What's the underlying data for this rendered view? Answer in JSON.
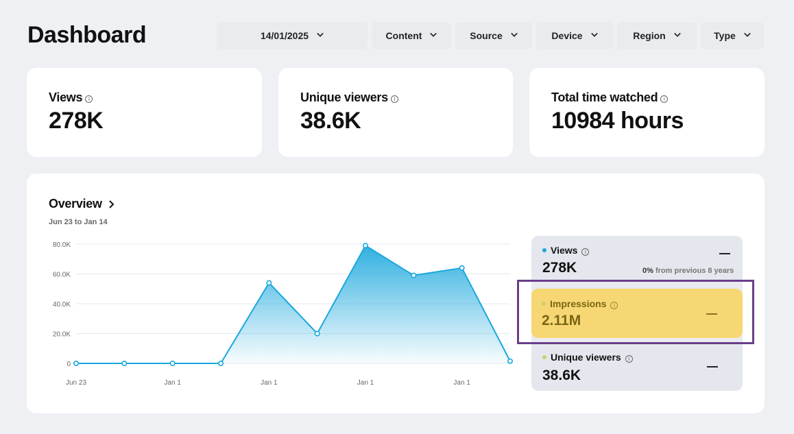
{
  "header": {
    "title": "Dashboard",
    "filters": [
      "14/01/2025",
      "Content",
      "Source",
      "Device",
      "Region",
      "Type"
    ]
  },
  "stats": [
    {
      "label": "Views",
      "value": "278K"
    },
    {
      "label": "Unique viewers",
      "value": "38.6K"
    },
    {
      "label": "Total time watched",
      "value": "10984 hours"
    }
  ],
  "overview": {
    "title": "Overview",
    "range": "Jun 23 to Jan 14"
  },
  "metrics": {
    "views": {
      "label": "Views",
      "value": "278K",
      "change_pct": "0%",
      "change_text": "from previous 8 years",
      "dot_color": "#1aa6e0"
    },
    "impressions": {
      "label": "Impressions",
      "value": "2.11M",
      "dot_color": "#c9d06a"
    },
    "unique_viewers": {
      "label": "Unique viewers",
      "value": "38.6K",
      "dot_color": "#c9d06a"
    }
  },
  "colors": {
    "line": "#19a7dd",
    "highlight_border": "#6b3d8a",
    "highlight_fill": "#f7d774"
  },
  "chart_data": {
    "type": "area",
    "x": [
      "Jun 23",
      "",
      "Jan 1",
      "",
      "Jan 1",
      "",
      "Jan 1",
      "",
      "Jan 1",
      ""
    ],
    "tick_labels": [
      "Jun 23",
      "Jan 1",
      "Jan 1",
      "Jan 1",
      "Jan 1"
    ],
    "y_ticks": [
      "0",
      "20.0K",
      "40.0K",
      "60.0K",
      "80.0K"
    ],
    "values": [
      0,
      0,
      0,
      0,
      54000,
      20000,
      79000,
      59000,
      64000,
      1500
    ],
    "ylim": [
      0,
      80000
    ],
    "grid": true
  }
}
